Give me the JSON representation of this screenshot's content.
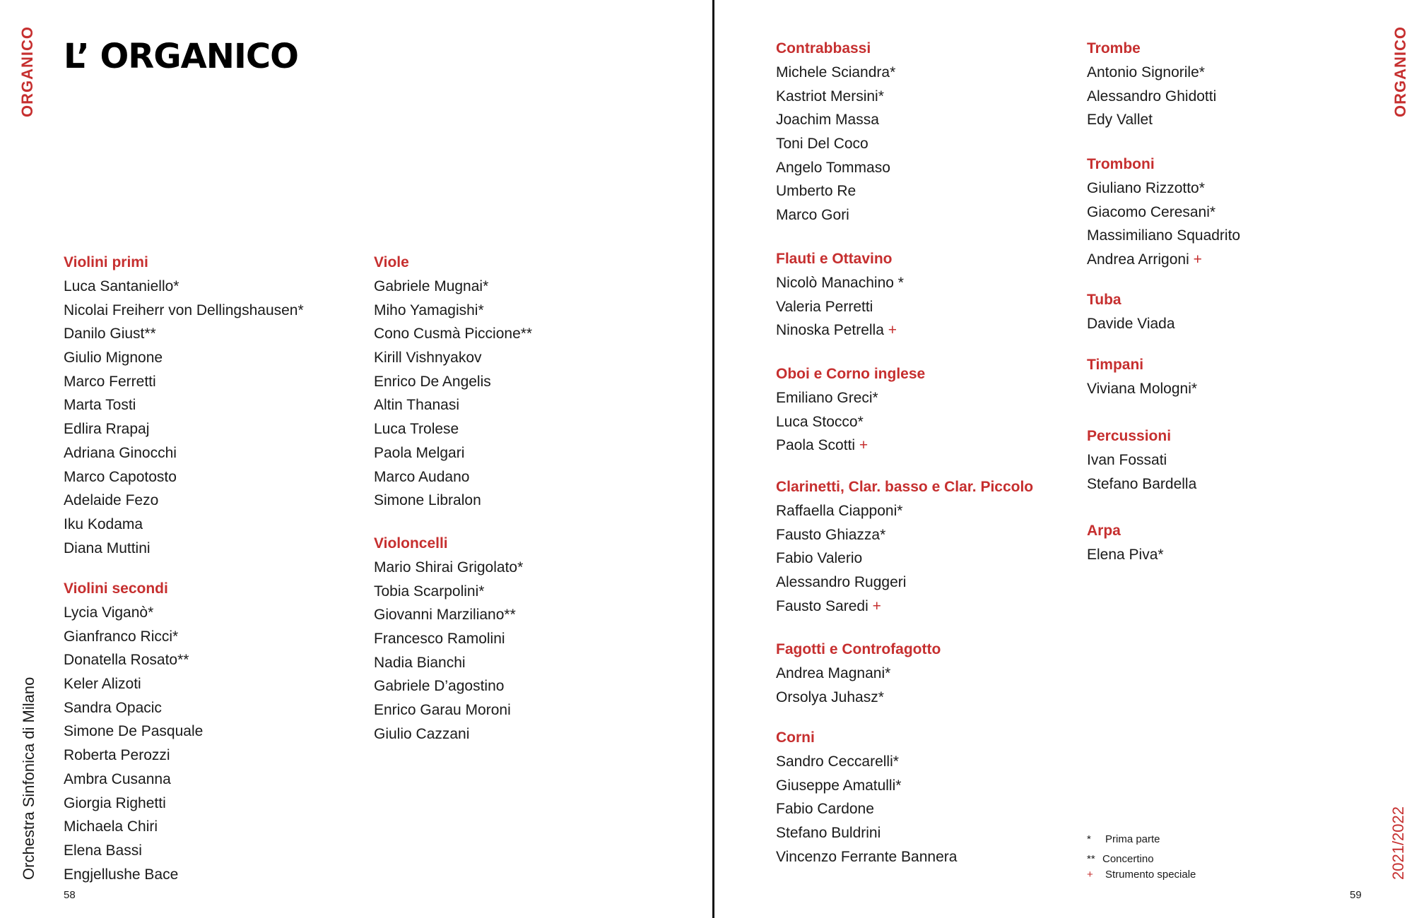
{
  "side_label_left": "ORGANICO",
  "side_label_right": "ORGANICO",
  "orchestra": "Orchestra Sinfonica di Milano",
  "season": "2021/2022",
  "title": "L’ ORGANICO",
  "page_left": "58",
  "page_right": "59",
  "accent_color": "#c62f2f",
  "sections": [
    {
      "heading": "Violini primi",
      "names": [
        {
          "name": "Luca Santaniello*"
        },
        {
          "name": "Nicolai Freiherr von Dellingshausen*"
        },
        {
          "name": "Danilo Giust**"
        },
        {
          "name": "Giulio Mignone"
        },
        {
          "name": "Marco Ferretti"
        },
        {
          "name": "Marta Tosti"
        },
        {
          "name": "Edlira Rrapaj"
        },
        {
          "name": "Adriana Ginocchi"
        },
        {
          "name": "Marco Capotosto"
        },
        {
          "name": "Adelaide Fezo"
        },
        {
          "name": "Iku Kodama"
        },
        {
          "name": "Diana Muttini"
        }
      ]
    },
    {
      "heading": "Violini secondi",
      "names": [
        {
          "name": "Lycia Viganò*"
        },
        {
          "name": "Gianfranco Ricci*"
        },
        {
          "name": "Donatella Rosato**"
        },
        {
          "name": "Keler Alizoti"
        },
        {
          "name": "Sandra Opacic"
        },
        {
          "name": "Simone De Pasquale"
        },
        {
          "name": "Roberta Perozzi"
        },
        {
          "name": "Ambra Cusanna"
        },
        {
          "name": "Giorgia Righetti"
        },
        {
          "name": "Michaela Chiri"
        },
        {
          "name": "Elena Bassi"
        },
        {
          "name": "Engjellushe Bace"
        }
      ]
    },
    {
      "heading": "Viole",
      "names": [
        {
          "name": "Gabriele Mugnai*"
        },
        {
          "name": "Miho Yamagishi*"
        },
        {
          "name": "Cono Cusmà Piccione**"
        },
        {
          "name": "Kirill Vishnyakov"
        },
        {
          "name": "Enrico De Angelis"
        },
        {
          "name": "Altin Thanasi"
        },
        {
          "name": "Luca Trolese"
        },
        {
          "name": "Paola Melgari"
        },
        {
          "name": "Marco Audano"
        },
        {
          "name": "Simone Libralon"
        }
      ]
    },
    {
      "heading": "Violoncelli",
      "names": [
        {
          "name": "Mario Shirai Grigolato*"
        },
        {
          "name": "Tobia Scarpolini*"
        },
        {
          "name": "Giovanni Marziliano**"
        },
        {
          "name": "Francesco Ramolini"
        },
        {
          "name": "Nadia Bianchi"
        },
        {
          "name": "Gabriele D’agostino"
        },
        {
          "name": "Enrico Garau Moroni"
        },
        {
          "name": "Giulio Cazzani"
        }
      ]
    },
    {
      "heading": "Contrabbassi",
      "names": [
        {
          "name": "Michele Sciandra*"
        },
        {
          "name": "Kastriot Mersini*"
        },
        {
          "name": "Joachim Massa"
        },
        {
          "name": "Toni Del Coco"
        },
        {
          "name": "Angelo Tommaso"
        },
        {
          "name": "Umberto Re"
        },
        {
          "name": "Marco Gori"
        }
      ]
    },
    {
      "heading": "Flauti e Ottavino",
      "names": [
        {
          "name": "Nicolò Manachino *"
        },
        {
          "name": "Valeria Perretti"
        },
        {
          "name": "Ninoska Petrella",
          "plus": "+"
        }
      ]
    },
    {
      "heading": "Oboi e Corno inglese",
      "names": [
        {
          "name": "Emiliano Greci*"
        },
        {
          "name": "Luca Stocco*"
        },
        {
          "name": "Paola Scotti",
          "plus": "+"
        }
      ]
    },
    {
      "heading": "Clarinetti, Clar. basso e Clar. Piccolo",
      "names": [
        {
          "name": "Raffaella Ciapponi*"
        },
        {
          "name": "Fausto Ghiazza*"
        },
        {
          "name": "Fabio Valerio"
        },
        {
          "name": "Alessandro Ruggeri"
        },
        {
          "name": "Fausto Saredi",
          "plus": "+"
        }
      ]
    },
    {
      "heading": "Fagotti e Controfagotto",
      "names": [
        {
          "name": "Andrea Magnani*"
        },
        {
          "name": "Orsolya Juhasz*"
        }
      ]
    },
    {
      "heading": "Corni",
      "names": [
        {
          "name": "Sandro Ceccarelli*"
        },
        {
          "name": "Giuseppe Amatulli*"
        },
        {
          "name": "Fabio Cardone"
        },
        {
          "name": "Stefano Buldrini"
        },
        {
          "name": "Vincenzo Ferrante Bannera"
        }
      ]
    },
    {
      "heading": "Trombe",
      "names": [
        {
          "name": "Antonio Signorile*"
        },
        {
          "name": "Alessandro Ghidotti"
        },
        {
          "name": "Edy Vallet"
        }
      ]
    },
    {
      "heading": "Tromboni",
      "names": [
        {
          "name": "Giuliano Rizzotto*"
        },
        {
          "name": "Giacomo Ceresani*"
        },
        {
          "name": "Massimiliano Squadrito"
        },
        {
          "name": "Andrea Arrigoni",
          "plus": "+"
        }
      ]
    },
    {
      "heading": "Tuba",
      "names": [
        {
          "name": "Davide Viada"
        }
      ]
    },
    {
      "heading": "Timpani",
      "names": [
        {
          "name": "Viviana Mologni*"
        }
      ]
    },
    {
      "heading": "Percussioni",
      "names": [
        {
          "name": "Ivan Fossati"
        },
        {
          "name": "Stefano Bardella"
        }
      ]
    },
    {
      "heading": "Arpa",
      "names": [
        {
          "name": "Elena Piva*"
        }
      ]
    }
  ],
  "legend": [
    {
      "mark": "*",
      "label": "Prima parte"
    },
    {
      "mark": "**",
      "label": "Concertino"
    },
    {
      "mark": "+",
      "label": "Strumento speciale"
    }
  ]
}
